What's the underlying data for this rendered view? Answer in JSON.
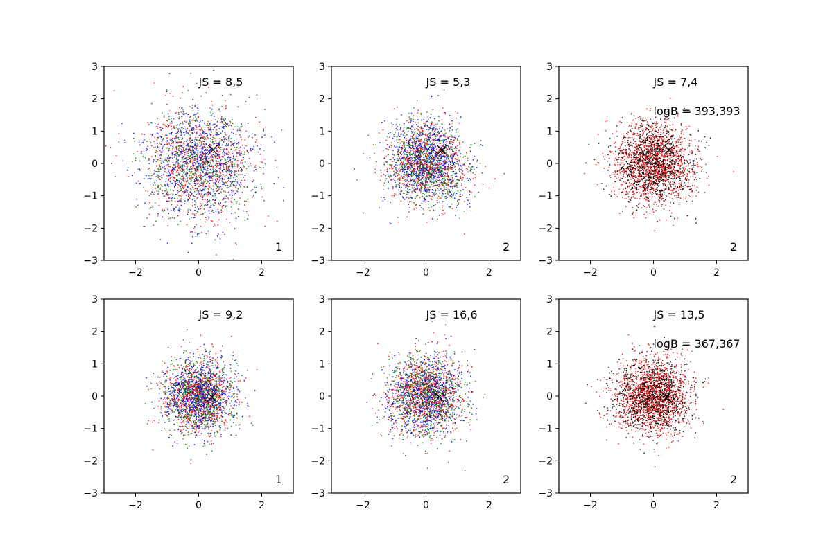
{
  "chart_data": [
    {
      "type": "scatter",
      "xlim": [
        -3,
        3
      ],
      "ylim": [
        -3,
        3
      ],
      "xticks": [
        -2,
        0,
        2
      ],
      "yticks": [
        -3,
        -2,
        -1,
        0,
        1,
        2,
        3
      ],
      "grid": false,
      "spread": 0.85,
      "colors": [
        "#0000ff",
        "#ff0000",
        "#008000"
      ],
      "marker": {
        "x": 0.45,
        "y": 0.42,
        "color": "#000000"
      },
      "annotations": [
        "JS = 8,5"
      ],
      "panel_label": "1"
    },
    {
      "type": "scatter",
      "xlim": [
        -3,
        3
      ],
      "ylim": [
        -3,
        3
      ],
      "xticks": [
        -2,
        0,
        2
      ],
      "yticks": [
        -3,
        -2,
        -1,
        0,
        1,
        2,
        3
      ],
      "grid": false,
      "spread": 0.62,
      "colors": [
        "#0000ff",
        "#ff0000",
        "#008000"
      ],
      "marker": {
        "x": 0.5,
        "y": 0.42,
        "color": "#000000"
      },
      "annotations": [
        "JS = 5,3"
      ],
      "panel_label": "2"
    },
    {
      "type": "scatter",
      "xlim": [
        -3,
        3
      ],
      "ylim": [
        -3,
        3
      ],
      "xticks": [
        -2,
        0,
        2
      ],
      "yticks": [
        -3,
        -2,
        -1,
        0,
        1,
        2,
        3
      ],
      "grid": false,
      "spread": 0.62,
      "colors": [
        "#000000",
        "#ff0000"
      ],
      "marker": {
        "x": 0.5,
        "y": 0.42,
        "color": "#000000"
      },
      "annotations": [
        "JS = 7,4",
        "logB = 393,393"
      ],
      "panel_label": "2"
    },
    {
      "type": "scatter",
      "xlim": [
        -3,
        3
      ],
      "ylim": [
        -3,
        3
      ],
      "xticks": [
        -2,
        0,
        2
      ],
      "yticks": [
        -3,
        -2,
        -1,
        0,
        1,
        2,
        3
      ],
      "grid": false,
      "spread": 0.55,
      "colors": [
        "#0000ff",
        "#ff0000",
        "#008000"
      ],
      "marker": {
        "x": 0.42,
        "y": -0.03,
        "color": "#000000"
      },
      "annotations": [
        "JS = 9,2"
      ],
      "panel_label": "1"
    },
    {
      "type": "scatter",
      "xlim": [
        -3,
        3
      ],
      "ylim": [
        -3,
        3
      ],
      "xticks": [
        -2,
        0,
        2
      ],
      "yticks": [
        -3,
        -2,
        -1,
        0,
        1,
        2,
        3
      ],
      "grid": false,
      "spread": 0.6,
      "colors": [
        "#0000ff",
        "#ff0000",
        "#008000"
      ],
      "marker": {
        "x": 0.42,
        "y": -0.03,
        "color": "#000000"
      },
      "annotations": [
        "JS = 16,6"
      ],
      "panel_label": "2"
    },
    {
      "type": "scatter",
      "xlim": [
        -3,
        3
      ],
      "ylim": [
        -3,
        3
      ],
      "xticks": [
        -2,
        0,
        2
      ],
      "yticks": [
        -3,
        -2,
        -1,
        0,
        1,
        2,
        3
      ],
      "grid": false,
      "spread": 0.58,
      "colors": [
        "#000000",
        "#ff0000"
      ],
      "marker": {
        "x": 0.42,
        "y": -0.03,
        "color": "#000000"
      },
      "annotations": [
        "JS = 13,5",
        "logB = 367,367"
      ],
      "panel_label": "2"
    }
  ]
}
